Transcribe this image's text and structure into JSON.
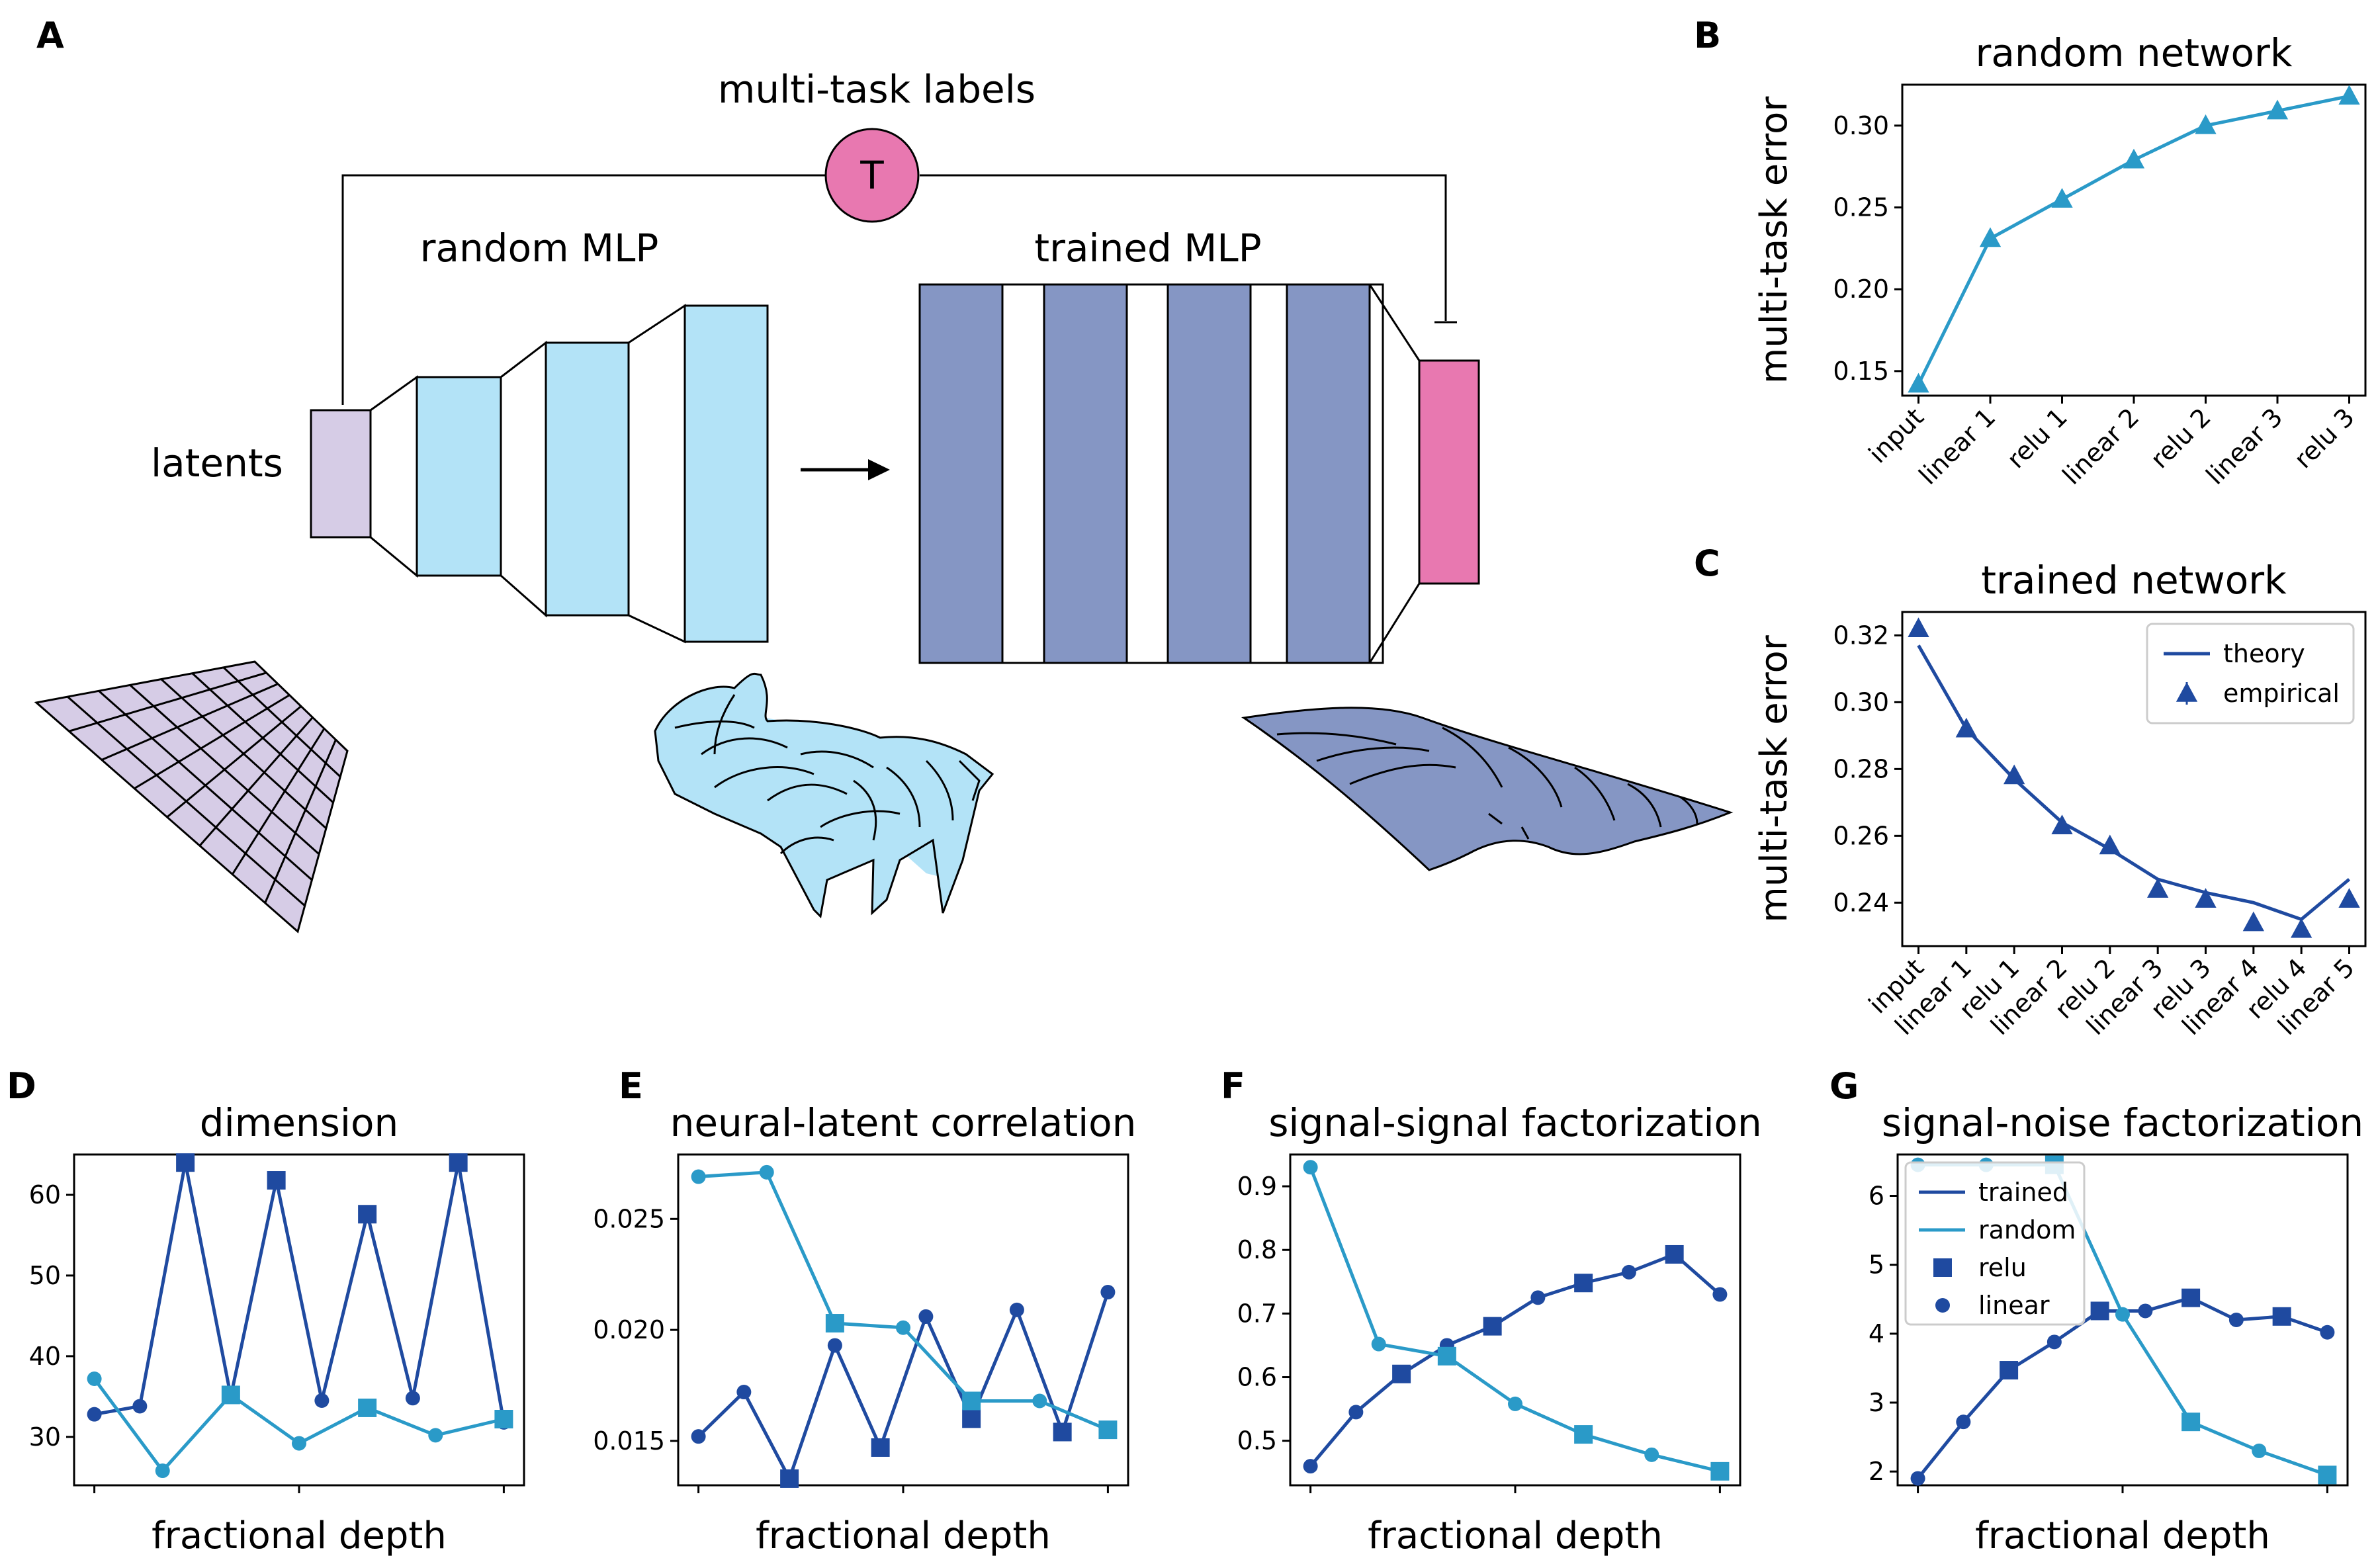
{
  "panels": {
    "A": "A",
    "B": "B",
    "C": "C",
    "D": "D",
    "E": "E",
    "F": "F",
    "G": "G"
  },
  "diagram": {
    "multitask_label": "multi-task labels",
    "T_symbol": "T",
    "random_mlp": "random MLP",
    "trained_mlp": "trained MLP",
    "latents": "latents"
  },
  "colors": {
    "dark": "#1f4aa0",
    "light": "#2a9ac8",
    "latents_fill": "#d6cce6",
    "random_fill": "#b3e3f7",
    "trained_fill": "#8596c4",
    "pink": "#e878b0"
  },
  "chart_data": [
    {
      "id": "B",
      "type": "line",
      "title": "random network",
      "ylabel": "multi-task error",
      "categories": [
        "input",
        "linear 1",
        "relu 1",
        "linear 2",
        "relu 2",
        "linear 3",
        "relu 3"
      ],
      "ylim": [
        0.135,
        0.325
      ],
      "yticks": [
        0.15,
        0.2,
        0.25,
        0.3
      ],
      "series": [
        {
          "values": [
            0.142,
            0.231,
            0.255,
            0.279,
            0.3,
            0.309,
            0.318
          ]
        }
      ]
    },
    {
      "id": "C",
      "type": "line",
      "title": "trained network",
      "ylabel": "multi-task error",
      "categories": [
        "input",
        "linear 1",
        "relu 1",
        "linear 2",
        "relu 2",
        "linear 3",
        "relu 3",
        "linear 4",
        "relu 4",
        "linear 5"
      ],
      "ylim": [
        0.227,
        0.327
      ],
      "yticks": [
        0.24,
        0.26,
        0.28,
        0.3,
        0.32
      ],
      "legend": [
        "theory",
        "empirical"
      ],
      "series": [
        {
          "name": "theory",
          "values": [
            0.317,
            0.292,
            0.277,
            0.264,
            0.256,
            0.247,
            0.243,
            0.24,
            0.235,
            0.247
          ]
        },
        {
          "name": "empirical",
          "values": [
            0.322,
            0.292,
            0.278,
            0.263,
            0.257,
            0.244,
            0.241,
            0.234,
            0.232,
            0.241
          ]
        }
      ]
    },
    {
      "id": "D",
      "type": "line",
      "title": "dimension",
      "xlabel": "fractional depth",
      "ylim": [
        24,
        65
      ],
      "yticks": [
        30,
        40,
        50,
        60
      ],
      "series": [
        {
          "name": "trained",
          "values": [
            32.8,
            33.8,
            64.0,
            35.0,
            61.8,
            34.5,
            57.6,
            34.8,
            64.0,
            31.8
          ],
          "markers": [
            "o",
            "o",
            "s",
            "o",
            "s",
            "o",
            "s",
            "o",
            "s",
            "o"
          ]
        },
        {
          "name": "random",
          "values": [
            37.2,
            25.8,
            35.2,
            29.2,
            33.6,
            30.2,
            32.2
          ],
          "markers": [
            "o",
            "o",
            "s",
            "o",
            "s",
            "o",
            "s"
          ]
        }
      ]
    },
    {
      "id": "E",
      "type": "line",
      "title": "neural-latent correlation",
      "ylim": [
        0.013,
        0.0279
      ],
      "yticks": [
        0.015,
        0.02,
        0.025
      ],
      "yticklabels": [
        "0.015",
        "0.020",
        "0.025"
      ],
      "xlabel": "fractional depth",
      "series": [
        {
          "name": "trained",
          "values": [
            0.0152,
            0.0172,
            0.0133,
            0.0193,
            0.0147,
            0.0206,
            0.016,
            0.0209,
            0.0154,
            0.0217
          ],
          "markers": [
            "o",
            "o",
            "s",
            "o",
            "s",
            "o",
            "s",
            "o",
            "s",
            "o"
          ]
        },
        {
          "name": "random",
          "values": [
            0.0269,
            0.0271,
            0.0203,
            0.0201,
            0.0168,
            0.0168,
            0.0155
          ],
          "markers": [
            "o",
            "o",
            "s",
            "o",
            "s",
            "o",
            "s"
          ]
        }
      ]
    },
    {
      "id": "F",
      "type": "line",
      "title": "signal-signal factorization",
      "xlabel": "fractional depth",
      "ylim": [
        0.43,
        0.95
      ],
      "yticks": [
        0.5,
        0.6,
        0.7,
        0.8,
        0.9
      ],
      "series": [
        {
          "name": "trained",
          "values": [
            0.46,
            0.545,
            0.605,
            0.65,
            0.68,
            0.725,
            0.748,
            0.765,
            0.793,
            0.73
          ],
          "markers": [
            "o",
            "o",
            "s",
            "o",
            "s",
            "o",
            "s",
            "o",
            "s",
            "o"
          ]
        },
        {
          "name": "random",
          "values": [
            0.93,
            0.652,
            0.633,
            0.558,
            0.51,
            0.478,
            0.452
          ],
          "markers": [
            "o",
            "o",
            "s",
            "o",
            "s",
            "o",
            "s"
          ]
        }
      ]
    },
    {
      "id": "G",
      "type": "line",
      "title": "signal-noise factorization",
      "xlabel": "fractional depth",
      "ylim": [
        1.8,
        6.6
      ],
      "yticks": [
        2,
        3,
        4,
        5,
        6
      ],
      "legend": [
        "trained",
        "random",
        "relu",
        "linear"
      ],
      "series": [
        {
          "name": "trained",
          "values": [
            1.9,
            2.72,
            3.47,
            3.88,
            4.33,
            4.33,
            4.52,
            4.2,
            4.25,
            4.02
          ],
          "markers": [
            "o",
            "o",
            "s",
            "o",
            "s",
            "o",
            "s",
            "o",
            "s",
            "o"
          ]
        },
        {
          "name": "random",
          "values": [
            6.45,
            6.45,
            6.45,
            4.28,
            2.72,
            2.3,
            1.95
          ],
          "markers": [
            "o",
            "o",
            "s",
            "o",
            "s",
            "o",
            "s"
          ]
        }
      ]
    }
  ]
}
